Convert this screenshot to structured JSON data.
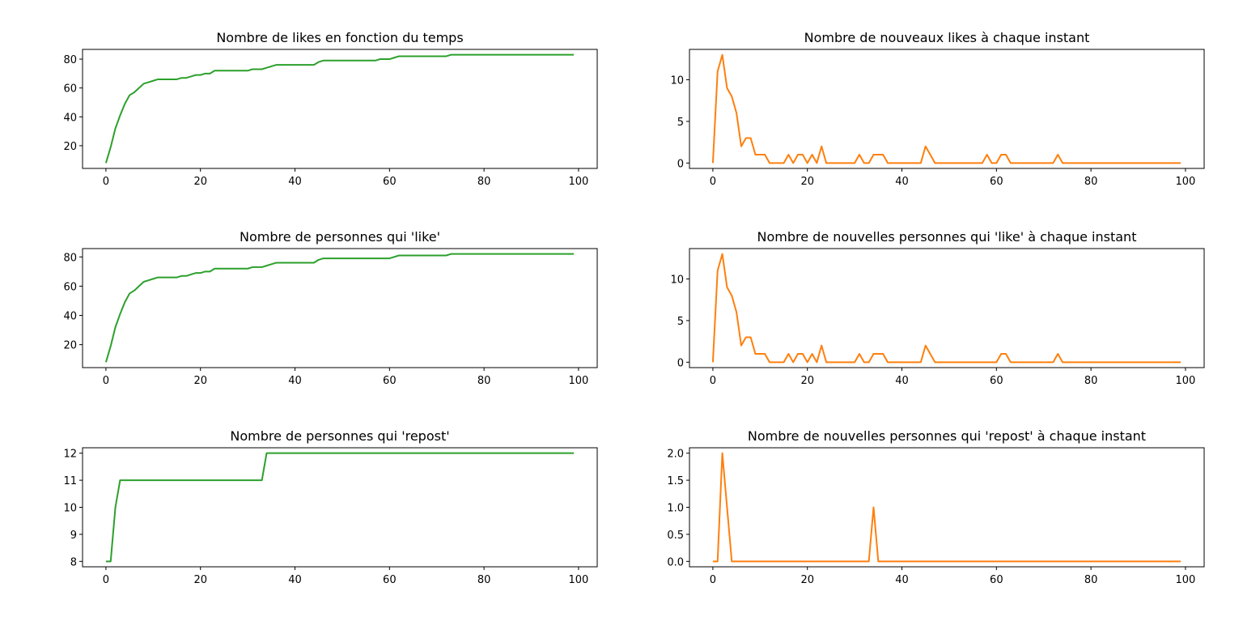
{
  "chart_data": [
    {
      "type": "line",
      "title": "Nombre de likes en fonction du temps",
      "color": "#2ca02c",
      "xlim": [
        -4.95,
        103.95
      ],
      "ylim": [
        4.25,
        86.75
      ],
      "xticks": [
        0,
        20,
        40,
        60,
        80,
        100
      ],
      "yticks": [
        20,
        40,
        60,
        80
      ],
      "grid": false,
      "x": [
        0,
        1,
        2,
        3,
        4,
        5,
        6,
        7,
        8,
        9,
        10,
        11,
        12,
        13,
        14,
        15,
        16,
        17,
        18,
        19,
        20,
        21,
        22,
        23,
        24,
        25,
        26,
        27,
        28,
        29,
        30,
        31,
        32,
        33,
        34,
        35,
        36,
        37,
        38,
        39,
        40,
        41,
        42,
        43,
        44,
        45,
        46,
        47,
        48,
        49,
        50,
        51,
        52,
        53,
        54,
        55,
        56,
        57,
        58,
        59,
        60,
        61,
        62,
        63,
        64,
        65,
        66,
        67,
        68,
        69,
        70,
        71,
        72,
        73,
        74,
        75,
        76,
        77,
        78,
        79,
        80,
        81,
        82,
        83,
        84,
        85,
        86,
        87,
        88,
        89,
        90,
        91,
        92,
        93,
        94,
        95,
        96,
        97,
        98,
        99
      ],
      "values": [
        8,
        19,
        32,
        41,
        49,
        55,
        57,
        60,
        63,
        64,
        65,
        66,
        66,
        66,
        66,
        66,
        67,
        67,
        68,
        69,
        69,
        70,
        70,
        72,
        72,
        72,
        72,
        72,
        72,
        72,
        72,
        73,
        73,
        73,
        74,
        75,
        76,
        76,
        76,
        76,
        76,
        76,
        76,
        76,
        76,
        78,
        79,
        79,
        79,
        79,
        79,
        79,
        79,
        79,
        79,
        79,
        79,
        79,
        80,
        80,
        80,
        81,
        82,
        82,
        82,
        82,
        82,
        82,
        82,
        82,
        82,
        82,
        82,
        83,
        83,
        83,
        83,
        83,
        83,
        83,
        83,
        83,
        83,
        83,
        83,
        83,
        83,
        83,
        83,
        83,
        83,
        83,
        83,
        83,
        83,
        83,
        83,
        83,
        83,
        83
      ]
    },
    {
      "type": "line",
      "title": "Nombre de nouveaux likes à chaque instant",
      "color": "#ff7f0e",
      "xlim": [
        -4.95,
        103.95
      ],
      "ylim": [
        -0.65,
        13.65
      ],
      "xticks": [
        0,
        20,
        40,
        60,
        80,
        100
      ],
      "yticks": [
        0,
        5,
        10
      ],
      "grid": false,
      "x": [
        0,
        1,
        2,
        3,
        4,
        5,
        6,
        7,
        8,
        9,
        10,
        11,
        12,
        13,
        14,
        15,
        16,
        17,
        18,
        19,
        20,
        21,
        22,
        23,
        24,
        25,
        26,
        27,
        28,
        29,
        30,
        31,
        32,
        33,
        34,
        35,
        36,
        37,
        38,
        39,
        40,
        41,
        42,
        43,
        44,
        45,
        46,
        47,
        48,
        49,
        50,
        51,
        52,
        53,
        54,
        55,
        56,
        57,
        58,
        59,
        60,
        61,
        62,
        63,
        64,
        65,
        66,
        67,
        68,
        69,
        70,
        71,
        72,
        73,
        74,
        75,
        76,
        77,
        78,
        79,
        80,
        81,
        82,
        83,
        84,
        85,
        86,
        87,
        88,
        89,
        90,
        91,
        92,
        93,
        94,
        95,
        96,
        97,
        98,
        99
      ],
      "values": [
        0,
        11,
        13,
        9,
        8,
        6,
        2,
        3,
        3,
        1,
        1,
        1,
        0,
        0,
        0,
        0,
        1,
        0,
        1,
        1,
        0,
        1,
        0,
        2,
        0,
        0,
        0,
        0,
        0,
        0,
        0,
        1,
        0,
        0,
        1,
        1,
        1,
        0,
        0,
        0,
        0,
        0,
        0,
        0,
        0,
        2,
        1,
        0,
        0,
        0,
        0,
        0,
        0,
        0,
        0,
        0,
        0,
        0,
        1,
        0,
        0,
        1,
        1,
        0,
        0,
        0,
        0,
        0,
        0,
        0,
        0,
        0,
        0,
        1,
        0,
        0,
        0,
        0,
        0,
        0,
        0,
        0,
        0,
        0,
        0,
        0,
        0,
        0,
        0,
        0,
        0,
        0,
        0,
        0,
        0,
        0,
        0,
        0,
        0,
        0
      ]
    },
    {
      "type": "line",
      "title": "Nombre de personnes qui 'like'",
      "color": "#2ca02c",
      "xlim": [
        -4.95,
        103.95
      ],
      "ylim": [
        4.3,
        85.7
      ],
      "xticks": [
        0,
        20,
        40,
        60,
        80,
        100
      ],
      "yticks": [
        20,
        40,
        60,
        80
      ],
      "grid": false,
      "x": [
        0,
        1,
        2,
        3,
        4,
        5,
        6,
        7,
        8,
        9,
        10,
        11,
        12,
        13,
        14,
        15,
        16,
        17,
        18,
        19,
        20,
        21,
        22,
        23,
        24,
        25,
        26,
        27,
        28,
        29,
        30,
        31,
        32,
        33,
        34,
        35,
        36,
        37,
        38,
        39,
        40,
        41,
        42,
        43,
        44,
        45,
        46,
        47,
        48,
        49,
        50,
        51,
        52,
        53,
        54,
        55,
        56,
        57,
        58,
        59,
        60,
        61,
        62,
        63,
        64,
        65,
        66,
        67,
        68,
        69,
        70,
        71,
        72,
        73,
        74,
        75,
        76,
        77,
        78,
        79,
        80,
        81,
        82,
        83,
        84,
        85,
        86,
        87,
        88,
        89,
        90,
        91,
        92,
        93,
        94,
        95,
        96,
        97,
        98,
        99
      ],
      "values": [
        8,
        19,
        32,
        41,
        49,
        55,
        57,
        60,
        63,
        64,
        65,
        66,
        66,
        66,
        66,
        66,
        67,
        67,
        68,
        69,
        69,
        70,
        70,
        72,
        72,
        72,
        72,
        72,
        72,
        72,
        72,
        73,
        73,
        73,
        74,
        75,
        76,
        76,
        76,
        76,
        76,
        76,
        76,
        76,
        76,
        78,
        79,
        79,
        79,
        79,
        79,
        79,
        79,
        79,
        79,
        79,
        79,
        79,
        79,
        79,
        79,
        80,
        81,
        81,
        81,
        81,
        81,
        81,
        81,
        81,
        81,
        81,
        81,
        82,
        82,
        82,
        82,
        82,
        82,
        82,
        82,
        82,
        82,
        82,
        82,
        82,
        82,
        82,
        82,
        82,
        82,
        82,
        82,
        82,
        82,
        82,
        82,
        82,
        82,
        82
      ]
    },
    {
      "type": "line",
      "title": "Nombre de nouvelles personnes qui 'like' à chaque instant",
      "color": "#ff7f0e",
      "xlim": [
        -4.95,
        103.95
      ],
      "ylim": [
        -0.65,
        13.65
      ],
      "xticks": [
        0,
        20,
        40,
        60,
        80,
        100
      ],
      "yticks": [
        0,
        5,
        10
      ],
      "grid": false,
      "x": [
        0,
        1,
        2,
        3,
        4,
        5,
        6,
        7,
        8,
        9,
        10,
        11,
        12,
        13,
        14,
        15,
        16,
        17,
        18,
        19,
        20,
        21,
        22,
        23,
        24,
        25,
        26,
        27,
        28,
        29,
        30,
        31,
        32,
        33,
        34,
        35,
        36,
        37,
        38,
        39,
        40,
        41,
        42,
        43,
        44,
        45,
        46,
        47,
        48,
        49,
        50,
        51,
        52,
        53,
        54,
        55,
        56,
        57,
        58,
        59,
        60,
        61,
        62,
        63,
        64,
        65,
        66,
        67,
        68,
        69,
        70,
        71,
        72,
        73,
        74,
        75,
        76,
        77,
        78,
        79,
        80,
        81,
        82,
        83,
        84,
        85,
        86,
        87,
        88,
        89,
        90,
        91,
        92,
        93,
        94,
        95,
        96,
        97,
        98,
        99
      ],
      "values": [
        0,
        11,
        13,
        9,
        8,
        6,
        2,
        3,
        3,
        1,
        1,
        1,
        0,
        0,
        0,
        0,
        1,
        0,
        1,
        1,
        0,
        1,
        0,
        2,
        0,
        0,
        0,
        0,
        0,
        0,
        0,
        1,
        0,
        0,
        1,
        1,
        1,
        0,
        0,
        0,
        0,
        0,
        0,
        0,
        0,
        2,
        1,
        0,
        0,
        0,
        0,
        0,
        0,
        0,
        0,
        0,
        0,
        0,
        0,
        0,
        0,
        1,
        1,
        0,
        0,
        0,
        0,
        0,
        0,
        0,
        0,
        0,
        0,
        1,
        0,
        0,
        0,
        0,
        0,
        0,
        0,
        0,
        0,
        0,
        0,
        0,
        0,
        0,
        0,
        0,
        0,
        0,
        0,
        0,
        0,
        0,
        0,
        0,
        0,
        0
      ]
    },
    {
      "type": "line",
      "title": "Nombre de personnes qui 'repost'",
      "color": "#2ca02c",
      "xlim": [
        -4.95,
        103.95
      ],
      "ylim": [
        7.8,
        12.2
      ],
      "xticks": [
        0,
        20,
        40,
        60,
        80,
        100
      ],
      "yticks": [
        8,
        9,
        10,
        11,
        12
      ],
      "grid": false,
      "x": [
        0,
        1,
        2,
        3,
        4,
        5,
        6,
        7,
        8,
        9,
        10,
        11,
        12,
        13,
        14,
        15,
        16,
        17,
        18,
        19,
        20,
        21,
        22,
        23,
        24,
        25,
        26,
        27,
        28,
        29,
        30,
        31,
        32,
        33,
        34,
        35,
        36,
        37,
        38,
        39,
        40,
        41,
        42,
        43,
        44,
        45,
        46,
        47,
        48,
        49,
        50,
        51,
        52,
        53,
        54,
        55,
        56,
        57,
        58,
        59,
        60,
        61,
        62,
        63,
        64,
        65,
        66,
        67,
        68,
        69,
        70,
        71,
        72,
        73,
        74,
        75,
        76,
        77,
        78,
        79,
        80,
        81,
        82,
        83,
        84,
        85,
        86,
        87,
        88,
        89,
        90,
        91,
        92,
        93,
        94,
        95,
        96,
        97,
        98,
        99
      ],
      "values": [
        8,
        8,
        10,
        11,
        11,
        11,
        11,
        11,
        11,
        11,
        11,
        11,
        11,
        11,
        11,
        11,
        11,
        11,
        11,
        11,
        11,
        11,
        11,
        11,
        11,
        11,
        11,
        11,
        11,
        11,
        11,
        11,
        11,
        11,
        12,
        12,
        12,
        12,
        12,
        12,
        12,
        12,
        12,
        12,
        12,
        12,
        12,
        12,
        12,
        12,
        12,
        12,
        12,
        12,
        12,
        12,
        12,
        12,
        12,
        12,
        12,
        12,
        12,
        12,
        12,
        12,
        12,
        12,
        12,
        12,
        12,
        12,
        12,
        12,
        12,
        12,
        12,
        12,
        12,
        12,
        12,
        12,
        12,
        12,
        12,
        12,
        12,
        12,
        12,
        12,
        12,
        12,
        12,
        12,
        12,
        12,
        12,
        12,
        12,
        12
      ]
    },
    {
      "type": "line",
      "title": "Nombre de nouvelles personnes qui 'repost' à chaque instant",
      "color": "#ff7f0e",
      "xlim": [
        -4.95,
        103.95
      ],
      "ylim": [
        -0.1,
        2.1
      ],
      "xticks": [
        0,
        20,
        40,
        60,
        80,
        100
      ],
      "yticks": [
        0.0,
        0.5,
        1.0,
        1.5,
        2.0
      ],
      "ytick_labels": [
        "0.0",
        "0.5",
        "1.0",
        "1.5",
        "2.0"
      ],
      "grid": false,
      "x": [
        0,
        1,
        2,
        3,
        4,
        5,
        6,
        7,
        8,
        9,
        10,
        11,
        12,
        13,
        14,
        15,
        16,
        17,
        18,
        19,
        20,
        21,
        22,
        23,
        24,
        25,
        26,
        27,
        28,
        29,
        30,
        31,
        32,
        33,
        34,
        35,
        36,
        37,
        38,
        39,
        40,
        41,
        42,
        43,
        44,
        45,
        46,
        47,
        48,
        49,
        50,
        51,
        52,
        53,
        54,
        55,
        56,
        57,
        58,
        59,
        60,
        61,
        62,
        63,
        64,
        65,
        66,
        67,
        68,
        69,
        70,
        71,
        72,
        73,
        74,
        75,
        76,
        77,
        78,
        79,
        80,
        81,
        82,
        83,
        84,
        85,
        86,
        87,
        88,
        89,
        90,
        91,
        92,
        93,
        94,
        95,
        96,
        97,
        98,
        99
      ],
      "values": [
        0,
        0,
        2,
        1,
        0,
        0,
        0,
        0,
        0,
        0,
        0,
        0,
        0,
        0,
        0,
        0,
        0,
        0,
        0,
        0,
        0,
        0,
        0,
        0,
        0,
        0,
        0,
        0,
        0,
        0,
        0,
        0,
        0,
        0,
        1,
        0,
        0,
        0,
        0,
        0,
        0,
        0,
        0,
        0,
        0,
        0,
        0,
        0,
        0,
        0,
        0,
        0,
        0,
        0,
        0,
        0,
        0,
        0,
        0,
        0,
        0,
        0,
        0,
        0,
        0,
        0,
        0,
        0,
        0,
        0,
        0,
        0,
        0,
        0,
        0,
        0,
        0,
        0,
        0,
        0,
        0,
        0,
        0,
        0,
        0,
        0,
        0,
        0,
        0,
        0,
        0,
        0,
        0,
        0,
        0,
        0,
        0,
        0,
        0,
        0
      ]
    }
  ]
}
